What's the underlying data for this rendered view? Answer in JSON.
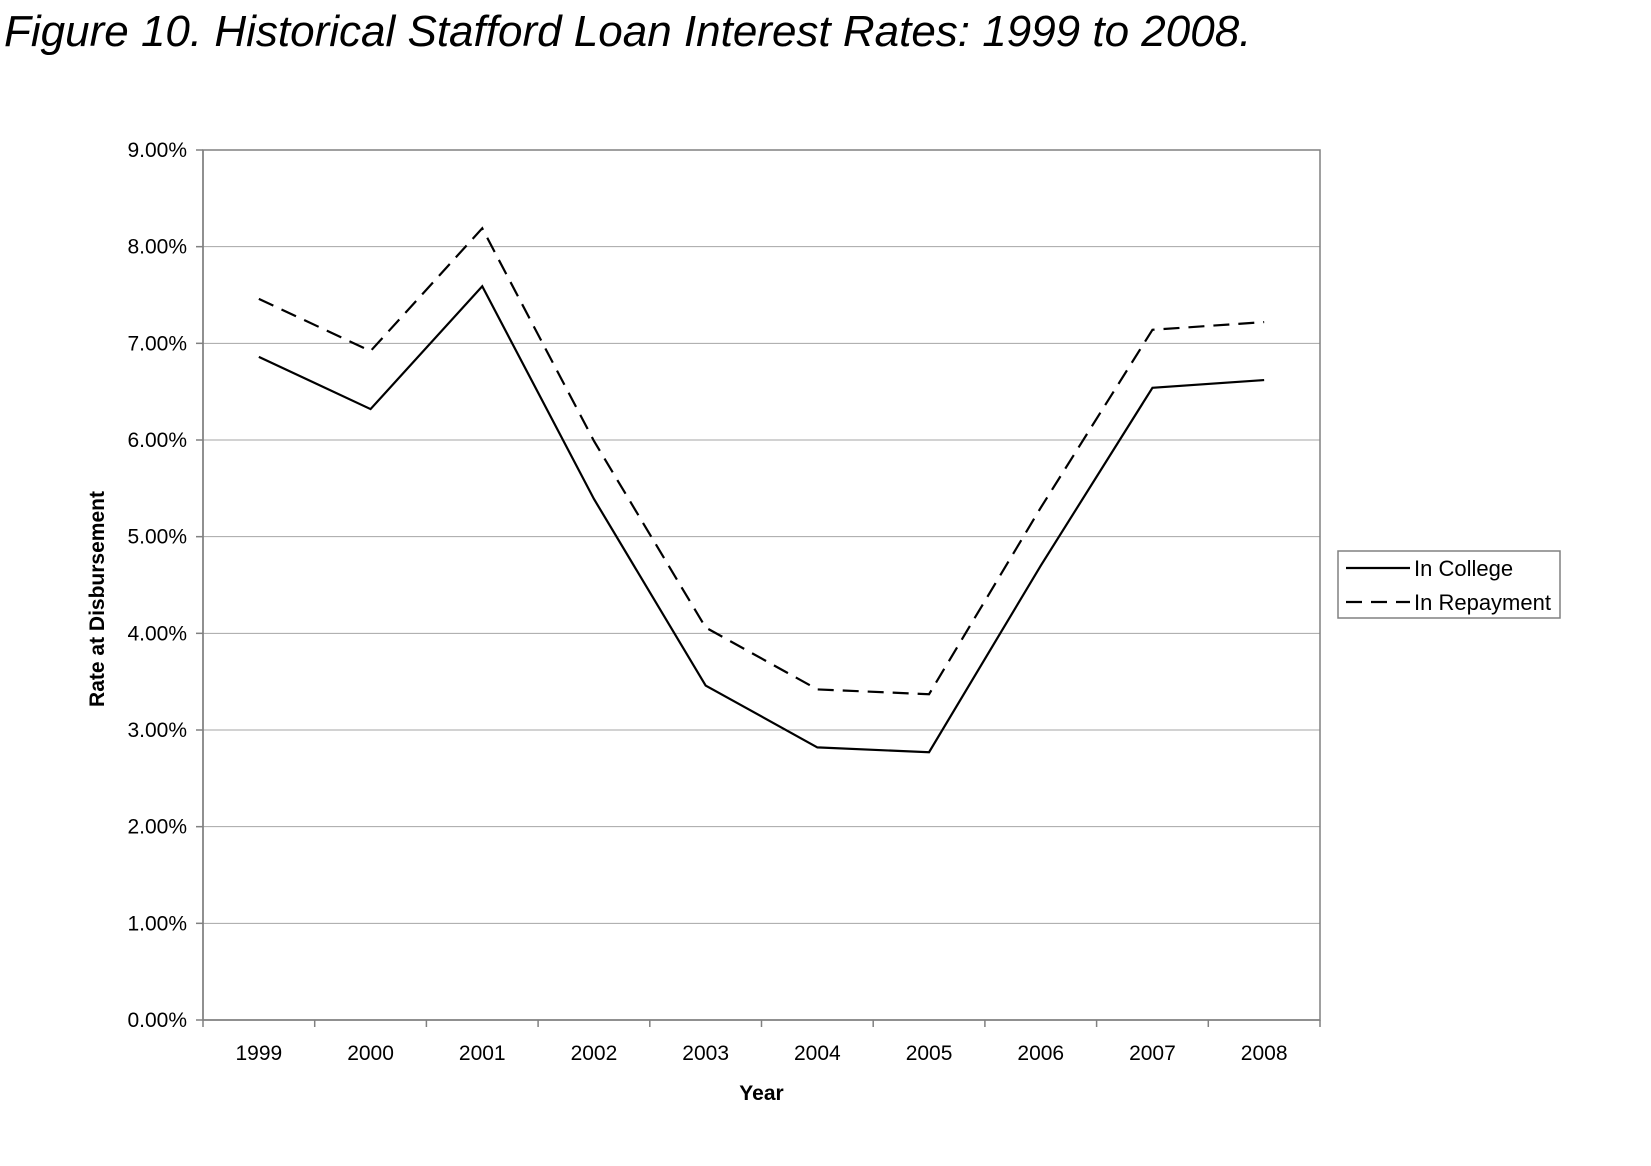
{
  "caption": "Figure 10. Historical Stafford Loan Interest Rates: 1999 to 2008.",
  "chart_data": {
    "type": "line",
    "title": "",
    "xlabel": "Year",
    "ylabel": "Rate at Disbursement",
    "categories": [
      "1999",
      "2000",
      "2001",
      "2002",
      "2003",
      "2004",
      "2005",
      "2006",
      "2007",
      "2008"
    ],
    "ylim": [
      0,
      9
    ],
    "y_ticks": [
      "0.00%",
      "1.00%",
      "2.00%",
      "3.00%",
      "4.00%",
      "5.00%",
      "6.00%",
      "7.00%",
      "8.00%",
      "9.00%"
    ],
    "grid": true,
    "legend_position": "right",
    "series": [
      {
        "name": "In College",
        "style": "solid",
        "color": "#000000",
        "values": [
          6.86,
          6.32,
          7.59,
          5.39,
          3.46,
          2.82,
          2.77,
          4.7,
          6.54,
          6.62
        ]
      },
      {
        "name": "In Repayment",
        "style": "dashed",
        "color": "#000000",
        "values": [
          7.46,
          6.92,
          8.19,
          5.99,
          4.06,
          3.42,
          3.37,
          5.3,
          7.14,
          7.22
        ]
      }
    ]
  }
}
